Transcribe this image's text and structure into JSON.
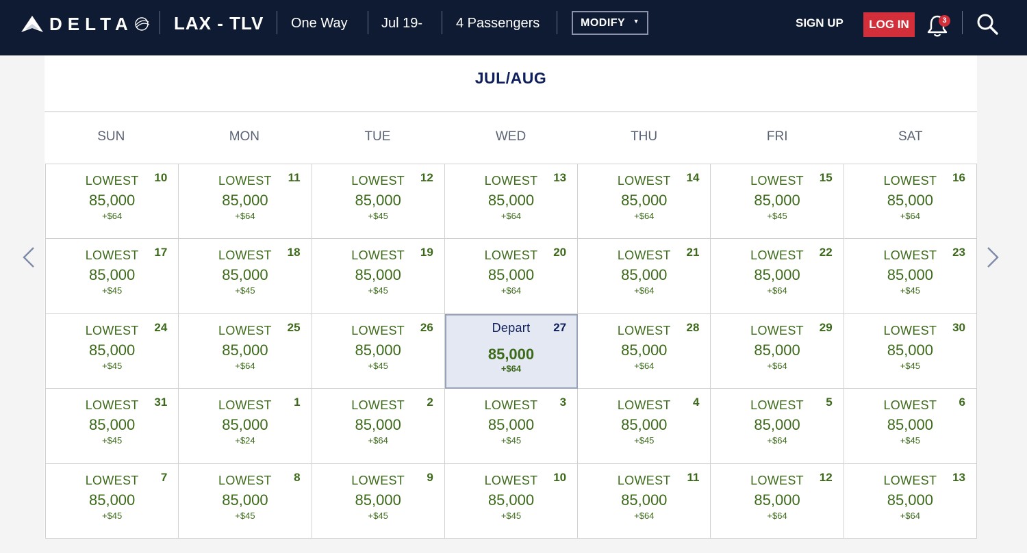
{
  "header": {
    "brand": "DELTA",
    "route": "LAX - TLV",
    "trip_type": "One Way",
    "date": "Jul 19-",
    "passengers": "4 Passengers",
    "modify_label": "MODIFY",
    "signup_label": "SIGN UP",
    "login_label": "LOG IN",
    "notification_count": "3",
    "colors": {
      "navy": "#0f1a33",
      "accent_red": "#d32f3a"
    }
  },
  "calendar": {
    "month_label": "JUL/AUG",
    "weekdays": [
      "SUN",
      "MON",
      "TUE",
      "WED",
      "THU",
      "FRI",
      "SAT"
    ],
    "colors": {
      "price_green": "#3c6a1a",
      "selected_bg": "#e3e8f2"
    },
    "days": [
      {
        "label": "LOWEST",
        "day": "10",
        "miles": "85,000",
        "fee": "+$64"
      },
      {
        "label": "LOWEST",
        "day": "11",
        "miles": "85,000",
        "fee": "+$64"
      },
      {
        "label": "LOWEST",
        "day": "12",
        "miles": "85,000",
        "fee": "+$45"
      },
      {
        "label": "LOWEST",
        "day": "13",
        "miles": "85,000",
        "fee": "+$64"
      },
      {
        "label": "LOWEST",
        "day": "14",
        "miles": "85,000",
        "fee": "+$64"
      },
      {
        "label": "LOWEST",
        "day": "15",
        "miles": "85,000",
        "fee": "+$45"
      },
      {
        "label": "LOWEST",
        "day": "16",
        "miles": "85,000",
        "fee": "+$64"
      },
      {
        "label": "LOWEST",
        "day": "17",
        "miles": "85,000",
        "fee": "+$45"
      },
      {
        "label": "LOWEST",
        "day": "18",
        "miles": "85,000",
        "fee": "+$45"
      },
      {
        "label": "LOWEST",
        "day": "19",
        "miles": "85,000",
        "fee": "+$45"
      },
      {
        "label": "LOWEST",
        "day": "20",
        "miles": "85,000",
        "fee": "+$64"
      },
      {
        "label": "LOWEST",
        "day": "21",
        "miles": "85,000",
        "fee": "+$64"
      },
      {
        "label": "LOWEST",
        "day": "22",
        "miles": "85,000",
        "fee": "+$64"
      },
      {
        "label": "LOWEST",
        "day": "23",
        "miles": "85,000",
        "fee": "+$45"
      },
      {
        "label": "LOWEST",
        "day": "24",
        "miles": "85,000",
        "fee": "+$45"
      },
      {
        "label": "LOWEST",
        "day": "25",
        "miles": "85,000",
        "fee": "+$64"
      },
      {
        "label": "LOWEST",
        "day": "26",
        "miles": "85,000",
        "fee": "+$45"
      },
      {
        "label": "Depart",
        "day": "27",
        "miles": "85,000",
        "fee": "+$64",
        "selected": true
      },
      {
        "label": "LOWEST",
        "day": "28",
        "miles": "85,000",
        "fee": "+$64"
      },
      {
        "label": "LOWEST",
        "day": "29",
        "miles": "85,000",
        "fee": "+$64"
      },
      {
        "label": "LOWEST",
        "day": "30",
        "miles": "85,000",
        "fee": "+$45"
      },
      {
        "label": "LOWEST",
        "day": "31",
        "miles": "85,000",
        "fee": "+$45"
      },
      {
        "label": "LOWEST",
        "day": "1",
        "miles": "85,000",
        "fee": "+$24"
      },
      {
        "label": "LOWEST",
        "day": "2",
        "miles": "85,000",
        "fee": "+$64"
      },
      {
        "label": "LOWEST",
        "day": "3",
        "miles": "85,000",
        "fee": "+$45"
      },
      {
        "label": "LOWEST",
        "day": "4",
        "miles": "85,000",
        "fee": "+$45"
      },
      {
        "label": "LOWEST",
        "day": "5",
        "miles": "85,000",
        "fee": "+$64"
      },
      {
        "label": "LOWEST",
        "day": "6",
        "miles": "85,000",
        "fee": "+$45"
      },
      {
        "label": "LOWEST",
        "day": "7",
        "miles": "85,000",
        "fee": "+$45"
      },
      {
        "label": "LOWEST",
        "day": "8",
        "miles": "85,000",
        "fee": "+$45"
      },
      {
        "label": "LOWEST",
        "day": "9",
        "miles": "85,000",
        "fee": "+$45"
      },
      {
        "label": "LOWEST",
        "day": "10",
        "miles": "85,000",
        "fee": "+$45"
      },
      {
        "label": "LOWEST",
        "day": "11",
        "miles": "85,000",
        "fee": "+$64"
      },
      {
        "label": "LOWEST",
        "day": "12",
        "miles": "85,000",
        "fee": "+$64"
      },
      {
        "label": "LOWEST",
        "day": "13",
        "miles": "85,000",
        "fee": "+$64"
      }
    ]
  }
}
